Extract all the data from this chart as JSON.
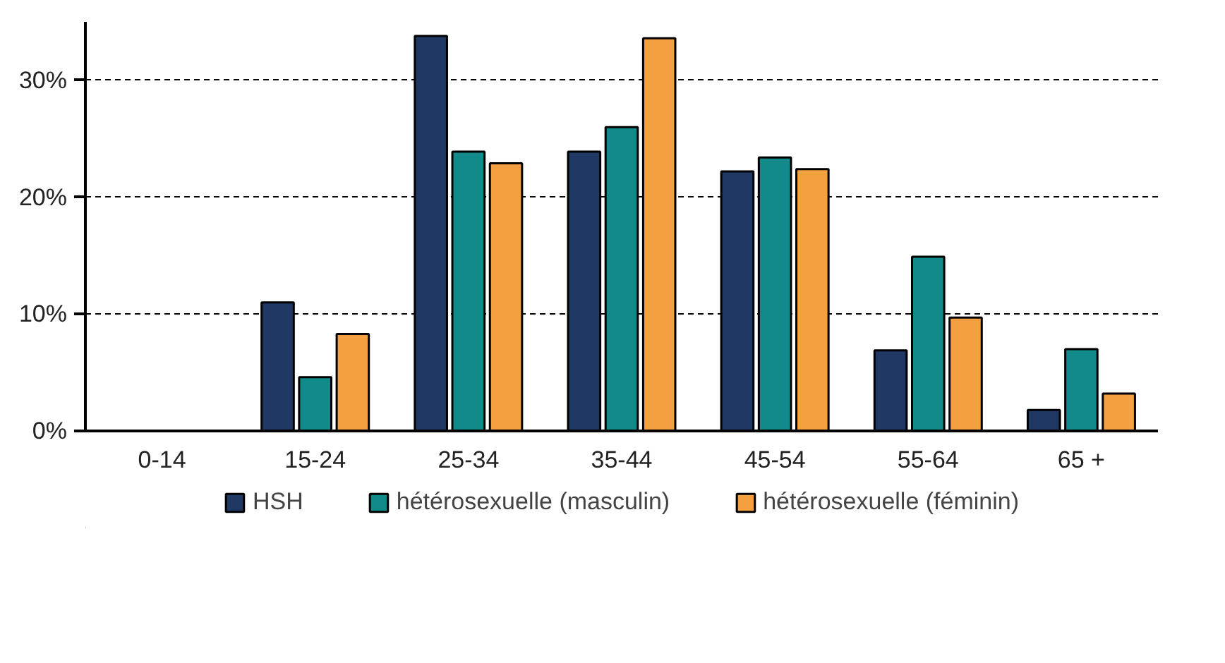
{
  "chart_data": {
    "type": "bar",
    "categories": [
      "0-14",
      "15-24",
      "25-34",
      "35-44",
      "45-54",
      "55-64",
      "65 +"
    ],
    "series": [
      {
        "name": "HSH",
        "color": "#1f3864",
        "values": [
          0,
          11.0,
          33.8,
          23.9,
          22.2,
          6.9,
          1.8
        ]
      },
      {
        "name": "hétérosexuelle (masculin)",
        "color": "#138a8a",
        "values": [
          0,
          4.6,
          23.9,
          26.0,
          23.4,
          14.9,
          7.0
        ]
      },
      {
        "name": "hétérosexuelle (féminin)",
        "color": "#f4a040",
        "values": [
          0,
          8.3,
          22.9,
          33.6,
          22.4,
          9.7,
          3.2
        ]
      }
    ],
    "ylim": [
      0,
      35
    ],
    "yticks": [
      {
        "value": 0,
        "label": "0%"
      },
      {
        "value": 10,
        "label": "10%"
      },
      {
        "value": 20,
        "label": "20%"
      },
      {
        "value": 30,
        "label": "30%"
      }
    ],
    "grid": "y",
    "legend": "bottom"
  }
}
